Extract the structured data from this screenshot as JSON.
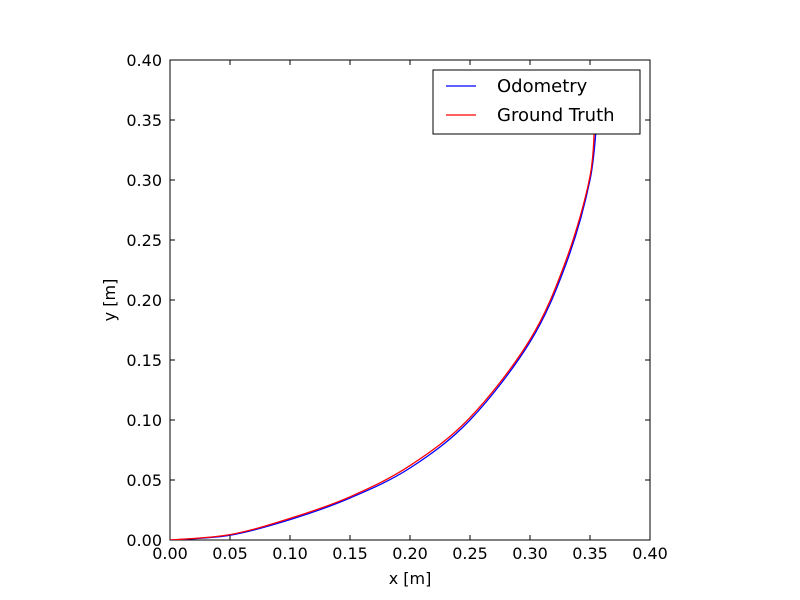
{
  "chart_data": {
    "type": "line",
    "title": "",
    "xlabel": "x [m]",
    "ylabel": "y [m]",
    "xlim": [
      0.0,
      0.4
    ],
    "ylim": [
      0.0,
      0.4
    ],
    "grid": false,
    "legend_position": "top-right",
    "xticks": [
      "0.00",
      "0.05",
      "0.10",
      "0.15",
      "0.20",
      "0.25",
      "0.30",
      "0.35",
      "0.40"
    ],
    "yticks": [
      "0.00",
      "0.05",
      "0.10",
      "0.15",
      "0.20",
      "0.25",
      "0.30",
      "0.35",
      "0.40"
    ],
    "series": [
      {
        "name": "Odometry",
        "color": "#0000ff",
        "x": [
          0.0,
          0.05,
          0.1,
          0.15,
          0.2,
          0.25,
          0.3,
          0.33,
          0.35,
          0.356
        ],
        "y": [
          0.0,
          0.004,
          0.017,
          0.035,
          0.06,
          0.1,
          0.165,
          0.23,
          0.3,
          0.355
        ]
      },
      {
        "name": "Ground Truth",
        "color": "#ff0000",
        "x": [
          0.0,
          0.05,
          0.1,
          0.15,
          0.2,
          0.25,
          0.3,
          0.33,
          0.35,
          0.354
        ],
        "y": [
          0.0,
          0.0045,
          0.018,
          0.036,
          0.062,
          0.102,
          0.167,
          0.233,
          0.303,
          0.355
        ]
      }
    ]
  }
}
